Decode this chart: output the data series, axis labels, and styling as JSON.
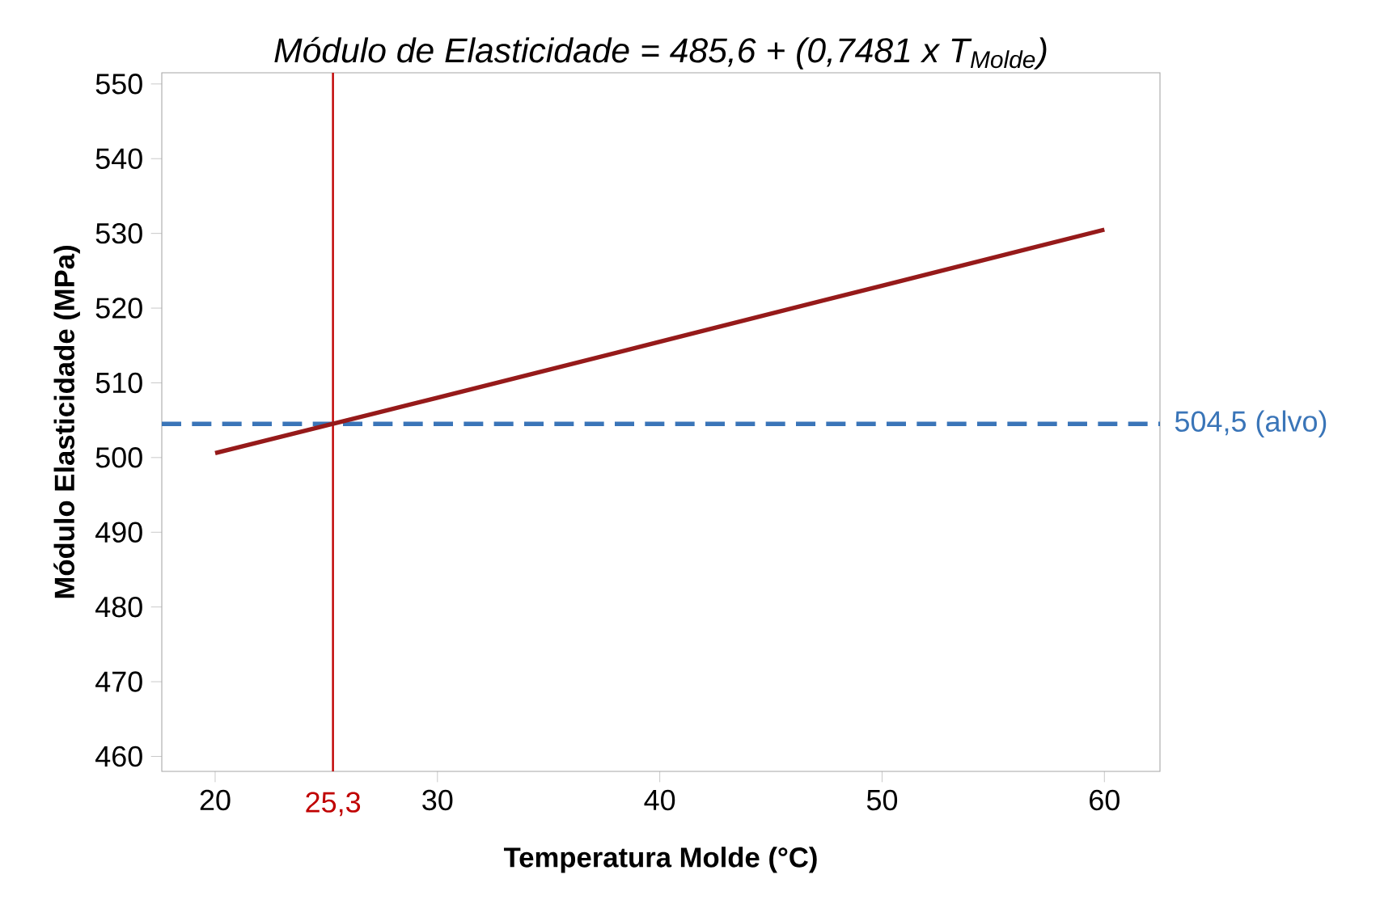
{
  "chart_data": {
    "type": "line",
    "title": "Módulo de Elasticidade = 485,6 + (0,7481 x T$_{Molde}$)",
    "xlabel": "Temperatura Molde (°C)",
    "ylabel": "Módulo Elasticidade (MPa)",
    "x": [
      20,
      30,
      40,
      50,
      60
    ],
    "series": [
      {
        "color": "#961a1a",
        "values": [
          500.6,
          508.0,
          515.5,
          523.0,
          530.5
        ]
      }
    ],
    "xlim": [
      17.6,
      62.5
    ],
    "ylim": [
      458.0,
      551.5
    ],
    "xticks": [
      20,
      30,
      40,
      50,
      60
    ],
    "yticks": [
      460,
      470,
      480,
      490,
      500,
      510,
      520,
      530,
      540,
      550
    ],
    "grid": false,
    "marker": "none",
    "line_style": "solid",
    "ref_lines": [
      {
        "axis": "x",
        "value": 25.3,
        "label": "25,3",
        "color": "#c00000",
        "line_style": "solid"
      },
      {
        "axis": "y",
        "value": 504.5,
        "label": "504,5 (alvo)",
        "color": "#3a75b8",
        "line_style": "dashed"
      }
    ]
  }
}
